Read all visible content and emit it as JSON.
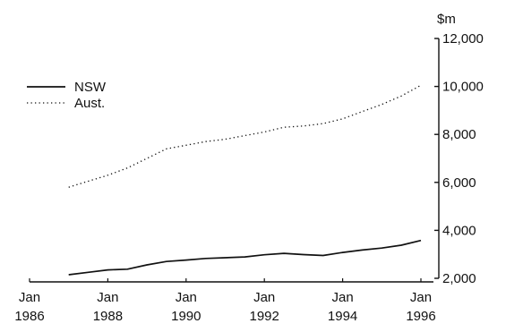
{
  "chart_data": {
    "type": "line",
    "ylabel": "$m",
    "ylim": [
      2000,
      12000
    ],
    "yticks": [
      2000,
      4000,
      6000,
      8000,
      10000,
      12000
    ],
    "ytick_labels": [
      "2,000",
      "4,000",
      "6,000",
      "8,000",
      "10,000",
      "12,000"
    ],
    "xlim": [
      "1986-01",
      "1996-01"
    ],
    "xticks": [
      {
        "date": "1986-01",
        "line1": "Jan",
        "line2": "1986"
      },
      {
        "date": "1988-01",
        "line1": "Jan",
        "line2": "1988"
      },
      {
        "date": "1990-01",
        "line1": "Jan",
        "line2": "1990"
      },
      {
        "date": "1992-01",
        "line1": "Jan",
        "line2": "1992"
      },
      {
        "date": "1994-01",
        "line1": "Jan",
        "line2": "1994"
      },
      {
        "date": "1996-01",
        "line1": "Jan",
        "line2": "1996"
      }
    ],
    "legend_position": "top-left",
    "grid": false,
    "x": [
      "1987-01",
      "1987-07",
      "1988-01",
      "1988-07",
      "1989-01",
      "1989-07",
      "1990-01",
      "1990-07",
      "1991-01",
      "1991-07",
      "1992-01",
      "1992-07",
      "1993-01",
      "1993-07",
      "1994-01",
      "1994-07",
      "1995-01",
      "1995-07",
      "1996-01"
    ],
    "series": [
      {
        "name": "NSW",
        "style": "solid",
        "color": "#111111",
        "values": [
          2150,
          2250,
          2350,
          2380,
          2560,
          2700,
          2760,
          2830,
          2860,
          2890,
          2980,
          3040,
          2990,
          2950,
          3080,
          3180,
          3260,
          3380,
          3580
        ]
      },
      {
        "name": "Aust.",
        "style": "dotted",
        "color": "#111111",
        "values": [
          5800,
          6050,
          6300,
          6600,
          7000,
          7400,
          7550,
          7700,
          7800,
          7950,
          8100,
          8300,
          8350,
          8450,
          8650,
          8950,
          9250,
          9600,
          10050
        ]
      }
    ]
  }
}
